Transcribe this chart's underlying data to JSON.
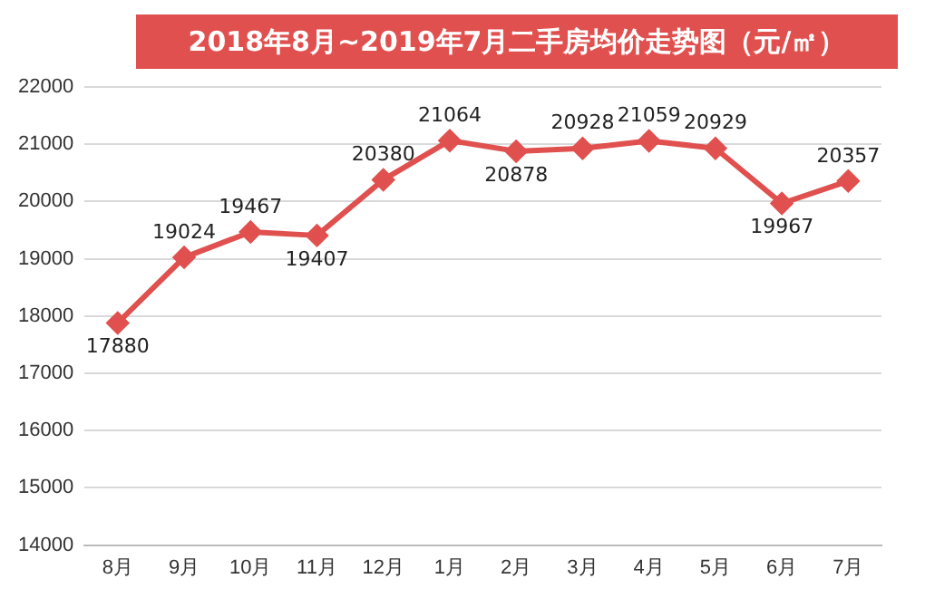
{
  "chart_data": {
    "type": "line",
    "title": "2018年8月~2019年7月二手房均价走势图（元/㎡）",
    "categories": [
      "8月",
      "9月",
      "10月",
      "11月",
      "12月",
      "1月",
      "2月",
      "3月",
      "4月",
      "5月",
      "6月",
      "7月"
    ],
    "series": [
      {
        "color": "#e0504f",
        "values": [
          17880,
          19024,
          19467,
          19407,
          20380,
          21064,
          20878,
          20928,
          21059,
          20929,
          19967,
          20357
        ]
      }
    ],
    "ylim": [
      14000,
      22000
    ],
    "yticks": [
      14000,
      15000,
      16000,
      17000,
      18000,
      19000,
      20000,
      21000,
      22000
    ],
    "grid": "y",
    "marker": "diamond",
    "line_style": "solid",
    "data_labels": true,
    "legend": false
  }
}
